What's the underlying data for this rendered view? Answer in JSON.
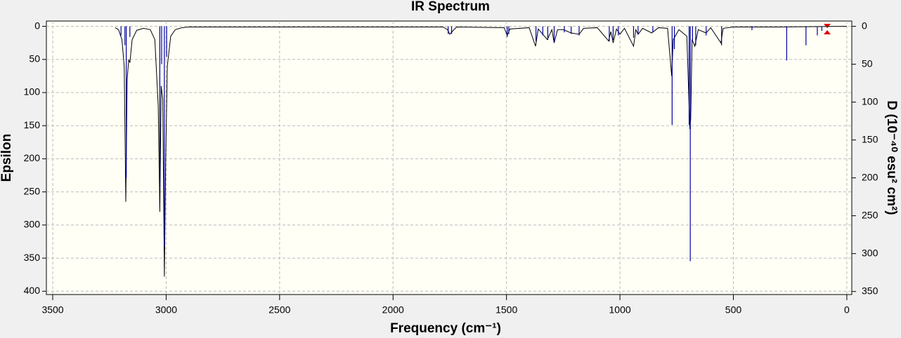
{
  "chart_data": {
    "type": "spectrum",
    "title": "IR Spectrum",
    "x_label": "Frequency (cm⁻¹)",
    "y_label": "Epsilon",
    "y2_label": "D (10⁻⁴⁰ esu² cm²)",
    "xlim": [
      3528,
      -22
    ],
    "xticks": [
      3500,
      3000,
      2500,
      2000,
      1500,
      1000,
      500,
      0
    ],
    "ylim": [
      -8,
      405
    ],
    "yticks": [
      0,
      50,
      100,
      150,
      200,
      250,
      300,
      350,
      400
    ],
    "y2lim": [
      -7,
      354
    ],
    "y2ticks": [
      0,
      50,
      100,
      150,
      200,
      250,
      300,
      350
    ],
    "grid": true,
    "series": [
      {
        "name": "Epsilon",
        "kind": "line",
        "color": "#000000",
        "x": [
          3225,
          3210,
          3195,
          3185,
          3178,
          3172,
          3165,
          3160,
          3150,
          3130,
          3100,
          3070,
          3050,
          3035,
          3028,
          3022,
          3015,
          3008,
          3002,
          2995,
          2980,
          2960,
          2930,
          2900,
          1780,
          1760,
          1750,
          1740,
          1720,
          1510,
          1497,
          1485,
          1400,
          1372,
          1360,
          1320,
          1300,
          1290,
          1275,
          1250,
          1215,
          1180,
          1160,
          1100,
          1050,
          1040,
          1030,
          1015,
          1000,
          980,
          940,
          930,
          920,
          900,
          860,
          830,
          790,
          772,
          765,
          740,
          705,
          692,
          688,
          682,
          670,
          655,
          620,
          600,
          555,
          545,
          500,
          300,
          0
        ],
        "values": [
          2,
          5,
          20,
          60,
          265,
          80,
          50,
          55,
          20,
          6,
          3,
          5,
          20,
          120,
          280,
          90,
          110,
          378,
          200,
          60,
          15,
          5,
          2,
          1,
          1,
          5,
          12,
          8,
          1,
          2,
          14,
          4,
          2,
          30,
          4,
          20,
          5,
          25,
          5,
          5,
          10,
          12,
          3,
          2,
          22,
          8,
          25,
          4,
          12,
          3,
          30,
          5,
          12,
          3,
          10,
          2,
          3,
          75,
          20,
          5,
          15,
          155,
          140,
          20,
          30,
          5,
          10,
          2,
          25,
          3,
          1,
          1,
          0
        ]
      },
      {
        "name": "D",
        "kind": "sticks",
        "color": "#0000a0",
        "axis": "y2",
        "x": [
          3199,
          3182,
          3176,
          3160,
          3028,
          3020,
          3008,
          2998,
          1757,
          1742,
          1497,
          1490,
          1370,
          1340,
          1318,
          1290,
          1245,
          1215,
          1180,
          1047,
          1030,
          1007,
          940,
          920,
          855,
          770,
          760,
          695,
          690,
          680,
          666,
          620,
          552,
          418,
          265,
          180,
          130,
          110
        ],
        "values": [
          12,
          25,
          200,
          14,
          215,
          50,
          290,
          40,
          10,
          10,
          14,
          10,
          20,
          12,
          18,
          20,
          8,
          10,
          12,
          20,
          18,
          12,
          15,
          10,
          8,
          130,
          30,
          130,
          310,
          20,
          25,
          12,
          25,
          5,
          45,
          25,
          12,
          6
        ]
      }
    ]
  }
}
